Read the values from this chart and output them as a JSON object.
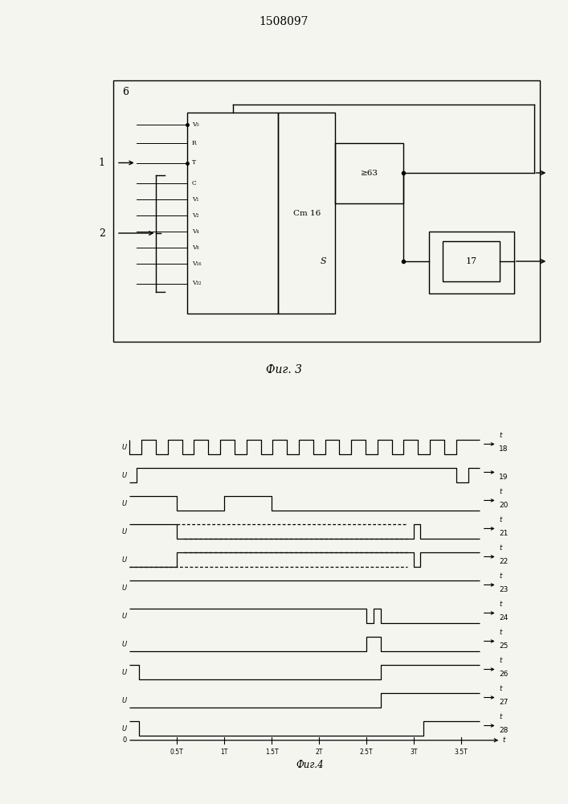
{
  "title": "1508097",
  "fig3_label": "Фиг. 3",
  "fig4_label": "Фиг.4",
  "bg_color": "#f5f5f0",
  "line_color": "#000000",
  "block6_label": "6",
  "block_cm16_label": "Cm 16",
  "block_ge63_label": "≥63",
  "block17_label": "17",
  "block_s_label": "S",
  "input1_label": "1",
  "input2_label": "2",
  "counter_pins": [
    "V₀",
    "R",
    "T",
    "C",
    "V₁",
    "V₂",
    "V₄",
    "V₈",
    "V₁₆",
    "V₃₂"
  ],
  "waveform_labels": [
    "18",
    "19",
    "20",
    "21",
    "22",
    "23",
    "24",
    "25",
    "26",
    "27",
    "28"
  ],
  "xtick_labels": [
    "0.5T",
    "1T",
    "1.5T",
    "2T",
    "2.5T",
    "3T",
    "3.5T"
  ],
  "xtick_vals": [
    0.5,
    1.0,
    1.5,
    2.0,
    2.5,
    3.0,
    3.5
  ]
}
